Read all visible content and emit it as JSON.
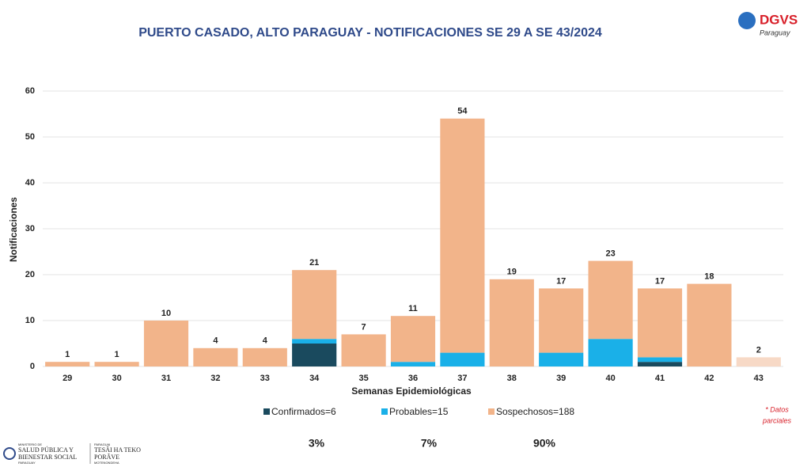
{
  "chart_data": {
    "type": "stacked_bar",
    "title": "PUERTO CASADO, ALTO PARAGUAY - NOTIFICACIONES SE 29 A SE 43/2024",
    "x_label": "Semanas  Epidemiológicas",
    "y_label": "Notificaciones",
    "categories": [
      "29",
      "30",
      "31",
      "32",
      "33",
      "34",
      "35",
      "36",
      "37",
      "38",
      "39",
      "40",
      "41",
      "42",
      "43"
    ],
    "series": [
      {
        "name": "Confirmados=6",
        "color": "#1a4a5e",
        "values": [
          0,
          0,
          0,
          0,
          0,
          5,
          0,
          0,
          0,
          0,
          0,
          0,
          1,
          0,
          0
        ]
      },
      {
        "name": "Probables=15",
        "color": "#1ab0e8",
        "values": [
          0,
          0,
          0,
          0,
          0,
          1,
          0,
          1,
          3,
          0,
          3,
          6,
          1,
          0,
          0
        ]
      },
      {
        "name": "Sospechosos=188",
        "color": "#f2b48a",
        "values": [
          1,
          1,
          10,
          4,
          4,
          15,
          7,
          10,
          51,
          19,
          14,
          17,
          15,
          18,
          2
        ]
      }
    ],
    "totals": [
      1,
      1,
      10,
      4,
      4,
      21,
      7,
      11,
      54,
      19,
      17,
      23,
      17,
      18,
      2
    ],
    "shares": [
      "3%",
      "7%",
      "90%"
    ],
    "partial_category": "43",
    "partial_color": "#f7d9c6",
    "partial_note": [
      "* Datos",
      "parciales"
    ],
    "ylim": [
      0,
      60
    ],
    "yticks": [
      0,
      10,
      20,
      30,
      40,
      50,
      60
    ],
    "grid": true
  },
  "logos": {
    "dgvs": "DGVS",
    "dgvs_sub": "Paraguay",
    "ministry": [
      "MINISTERIO DE",
      "SALUD PÚBLICA Y",
      "BIENESTAR SOCIAL",
      "PARAGUAY"
    ],
    "slogan": [
      "PARAGUAI",
      "TESÃI HA TEKO",
      "PORÃVE",
      "MOTENONDEHA"
    ]
  }
}
